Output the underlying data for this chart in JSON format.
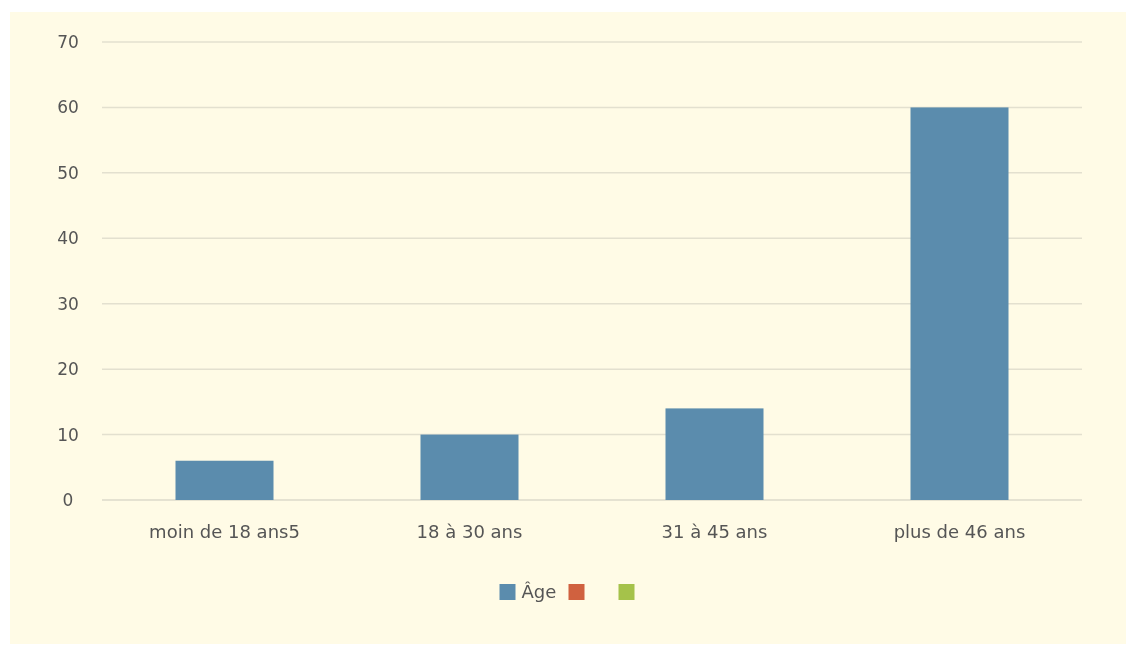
{
  "chart_data": {
    "type": "bar",
    "categories": [
      "moin de 18 ans5",
      "18 à 30 ans",
      "31 à 45 ans",
      "plus de 46 ans"
    ],
    "series": [
      {
        "name": "Âge",
        "color": "#5b8cad",
        "values": [
          6,
          10,
          14,
          60
        ]
      },
      {
        "color": "#d0613f",
        "values": [
          null,
          null,
          null,
          null
        ]
      },
      {
        "color": "#a5c24a",
        "values": [
          null,
          null,
          null,
          null
        ]
      }
    ],
    "ylim": [
      0,
      70
    ],
    "yticks": [
      0,
      10,
      20,
      30,
      40,
      50,
      60,
      70
    ],
    "grid": "y",
    "legend": "bottom"
  }
}
